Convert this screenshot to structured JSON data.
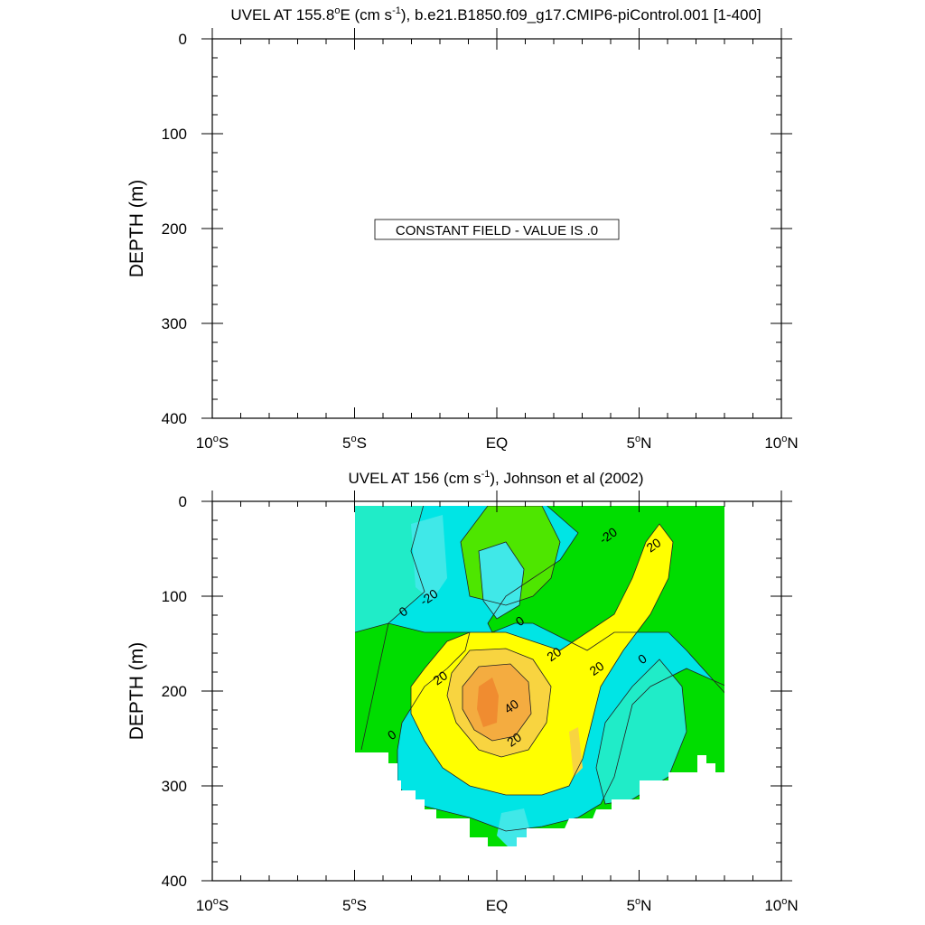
{
  "chart_data": [
    {
      "type": "heatmap",
      "title": {
        "pre": "UVEL AT 155.8",
        "deg": "o",
        "mid": "E (cm s",
        "sup": "-1",
        "post": "), b.e21.B1850.f09_g17.CMIP6-piControl.001 [1-400]"
      },
      "ylabel": "DEPTH (m)",
      "xlim": [
        -10,
        10
      ],
      "ylim": [
        0,
        400
      ],
      "y_inverted": true,
      "yticks": [
        "0",
        "100",
        "200",
        "300",
        "400"
      ],
      "xticks": [
        {
          "num": "10",
          "deg": "o",
          "hem": "S"
        },
        {
          "num": "5",
          "deg": "o",
          "hem": "S"
        },
        {
          "num": "EQ",
          "deg": "",
          "hem": ""
        },
        {
          "num": "5",
          "deg": "o",
          "hem": "N"
        },
        {
          "num": "10",
          "deg": "o",
          "hem": "N"
        }
      ],
      "annotation": "CONSTANT FIELD - VALUE IS .0",
      "value": 0
    },
    {
      "type": "heatmap",
      "title": {
        "pre": "UVEL AT 156 (cm s",
        "sup": "-1",
        "post": "), Johnson et al (2002)"
      },
      "ylabel": "DEPTH (m)",
      "xlim": [
        -10,
        10
      ],
      "ylim": [
        0,
        400
      ],
      "y_inverted": true,
      "yticks": [
        "0",
        "100",
        "200",
        "300",
        "400"
      ],
      "xticks": [
        {
          "num": "10",
          "deg": "o",
          "hem": "S"
        },
        {
          "num": "5",
          "deg": "o",
          "hem": "S"
        },
        {
          "num": "EQ",
          "deg": "",
          "hem": ""
        },
        {
          "num": "5",
          "deg": "o",
          "hem": "N"
        },
        {
          "num": "10",
          "deg": "o",
          "hem": "N"
        }
      ],
      "data_extent": {
        "lat": [
          -5,
          8
        ],
        "depth_surface": 5
      },
      "contour_labels": [
        {
          "text": "-20",
          "lat": -2.3,
          "depth": 105
        },
        {
          "text": "0",
          "lat": -3.2,
          "depth": 120
        },
        {
          "text": "0",
          "lat": 0.9,
          "depth": 130
        },
        {
          "text": "-20",
          "lat": 4.0,
          "depth": 40
        },
        {
          "text": "20",
          "lat": 5.6,
          "depth": 50
        },
        {
          "text": "20",
          "lat": 2.1,
          "depth": 165
        },
        {
          "text": "20",
          "lat": -1.9,
          "depth": 190
        },
        {
          "text": "20",
          "lat": 3.6,
          "depth": 180
        },
        {
          "text": "0",
          "lat": 5.2,
          "depth": 170
        },
        {
          "text": "40",
          "lat": 0.6,
          "depth": 220
        },
        {
          "text": "20",
          "lat": 0.7,
          "depth": 255
        },
        {
          "text": "0",
          "lat": -3.6,
          "depth": 250
        }
      ],
      "colors": {
        "neg30": "#00e5e5",
        "neg20": "#40e8e8",
        "neg10": "#20ecc8",
        "zero": "#4ee600",
        "pos10": "#00dd00",
        "pos20": "#ffff00",
        "pos30": "#f8d440",
        "pos40": "#f4ac40",
        "pos50": "#f08c30"
      }
    }
  ]
}
